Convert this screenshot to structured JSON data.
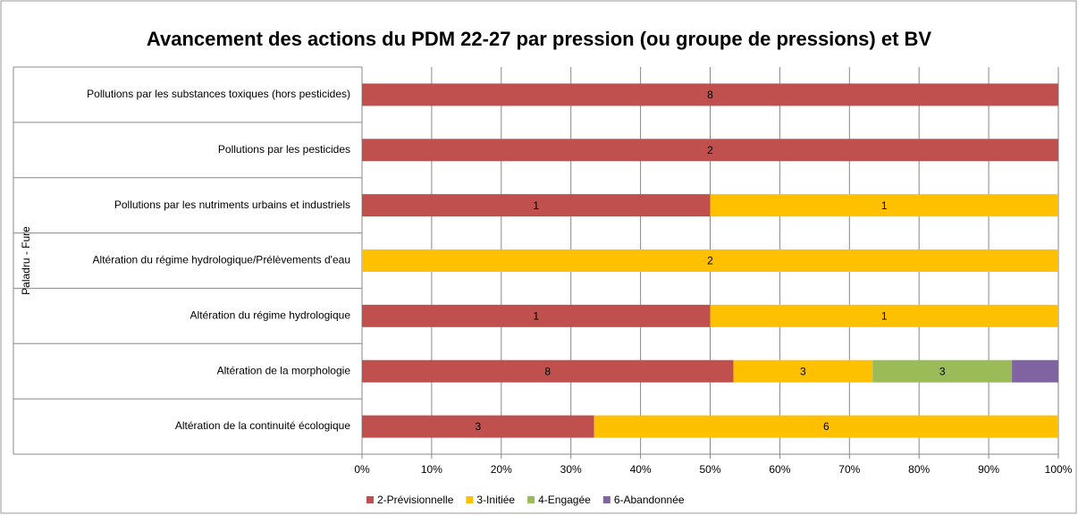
{
  "chart_data": {
    "type": "bar",
    "orientation": "horizontal",
    "stacking": "percent",
    "title": "Avancement des actions du PDM 22-27 par pression (ou groupe de pressions) et BV",
    "group_label": "Paladru - Fure",
    "categories": [
      "Pollutions par les substances toxiques (hors pesticides)",
      "Pollutions par les pesticides",
      "Pollutions par les nutriments urbains et industriels",
      "Altération du régime hydrologique/Prélèvements d'eau",
      "Altération du régime hydrologique",
      "Altération de la morphologie",
      "Altération de la continuité écologique"
    ],
    "series": [
      {
        "name": "2-Prévisionnelle",
        "color": "#c0504d",
        "values": [
          8,
          2,
          1,
          null,
          1,
          8,
          3
        ]
      },
      {
        "name": "3-Initiée",
        "color": "#ffc000",
        "values": [
          null,
          null,
          1,
          2,
          1,
          3,
          6
        ]
      },
      {
        "name": "4-Engagée",
        "color": "#9bbb59",
        "values": [
          null,
          null,
          null,
          null,
          null,
          3,
          null
        ]
      },
      {
        "name": "6-Abandonnée",
        "color": "#8064a2",
        "values": [
          null,
          null,
          null,
          null,
          null,
          1,
          null
        ],
        "data_labels": false
      }
    ],
    "xlim": [
      0,
      100
    ],
    "xticks": [
      {
        "value": 0,
        "label": "0%"
      },
      {
        "value": 10,
        "label": "10%"
      },
      {
        "value": 20,
        "label": "20%"
      },
      {
        "value": 30,
        "label": "30%"
      },
      {
        "value": 40,
        "label": "40%"
      },
      {
        "value": 50,
        "label": "50%"
      },
      {
        "value": 60,
        "label": "60%"
      },
      {
        "value": 70,
        "label": "70%"
      },
      {
        "value": 80,
        "label": "80%"
      },
      {
        "value": 90,
        "label": "90%"
      },
      {
        "value": 100,
        "label": "100%"
      }
    ],
    "grid": true,
    "legend": "bottom"
  }
}
